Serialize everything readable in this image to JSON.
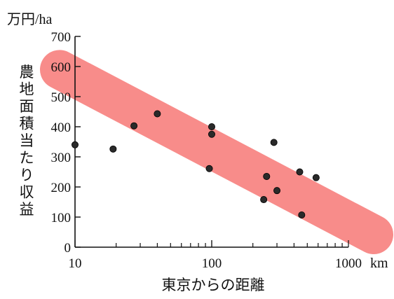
{
  "chart_data": {
    "type": "scatter",
    "title": "",
    "xlabel": "東京からの距離",
    "ylabel": "農地面積当たり収益",
    "y_unit": "万円/ha",
    "x_unit": "km",
    "x_scale": "log",
    "xlim": [
      10,
      1000
    ],
    "ylim": [
      0,
      700
    ],
    "x_ticks": [
      10,
      100,
      1000
    ],
    "x_tick_labels": [
      "10",
      "100",
      "1000"
    ],
    "y_ticks": [
      0,
      100,
      200,
      300,
      400,
      500,
      600,
      700
    ],
    "y_tick_labels": [
      "0",
      "100",
      "200",
      "300",
      "400",
      "500",
      "600",
      "700"
    ],
    "grid": false,
    "band": {
      "color": "#f88c8a",
      "from": [
        10,
        555
      ],
      "to": [
        1000,
        35
      ]
    },
    "points": [
      {
        "x": 10,
        "y": 340
      },
      {
        "x": 19,
        "y": 326
      },
      {
        "x": 27,
        "y": 403
      },
      {
        "x": 40,
        "y": 443
      },
      {
        "x": 96,
        "y": 261
      },
      {
        "x": 100,
        "y": 400
      },
      {
        "x": 100,
        "y": 375
      },
      {
        "x": 240,
        "y": 158
      },
      {
        "x": 252,
        "y": 235
      },
      {
        "x": 285,
        "y": 348
      },
      {
        "x": 300,
        "y": 188
      },
      {
        "x": 440,
        "y": 250
      },
      {
        "x": 455,
        "y": 107
      },
      {
        "x": 580,
        "y": 231
      }
    ]
  }
}
